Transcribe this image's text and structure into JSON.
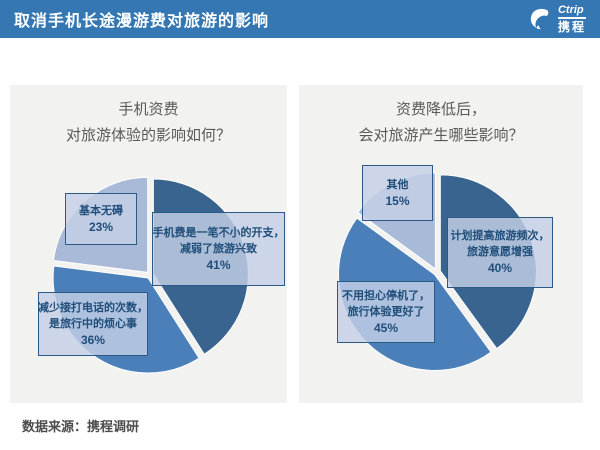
{
  "header": {
    "title": "取消手机长途漫游费对旅游的影响",
    "logo": {
      "brand": "Ctrip",
      "brand_cn": "携程"
    }
  },
  "footer": {
    "source": "数据来源：携程调研"
  },
  "colors": {
    "header_bg": "#3577B3",
    "panel_bg": "#F2F2F1",
    "slice_dark": "#38648F",
    "slice_medium": "#4B7FB9",
    "slice_light": "#A9B9D8",
    "label_text": "#1F4E79",
    "label_border": "#2C5985"
  },
  "chart_data": [
    {
      "type": "pie",
      "title": "手机资费对旅游体验的影响如何？",
      "title_lines": [
        "手机资费",
        "对旅游体验的影响如何？"
      ],
      "start_angle_deg": 0,
      "direction": "clockwise",
      "legend": false,
      "slices": [
        {
          "name": "手机费是一笔不小的开支，减弱了旅游兴致",
          "value": 41,
          "pct_label": "41%",
          "label_lines": [
            "手机费是一笔不小的开支，",
            "减弱了旅游兴致"
          ],
          "color": "#38648F"
        },
        {
          "name": "减少接打电话的次数，是旅行中的烦心事",
          "value": 36,
          "pct_label": "36%",
          "label_lines": [
            "减少接打电话的次数，",
            "是旅行中的烦心事"
          ],
          "color": "#4B7FB9"
        },
        {
          "name": "基本无碍",
          "value": 23,
          "pct_label": "23%",
          "label_lines": [
            "基本无碍"
          ],
          "color": "#A9B9D8"
        }
      ]
    },
    {
      "type": "pie",
      "title": "资费降低后，会对旅游产生哪些影响？",
      "title_lines": [
        "资费降低后，",
        "会对旅游产生哪些影响？"
      ],
      "start_angle_deg": 0,
      "direction": "clockwise",
      "legend": false,
      "slices": [
        {
          "name": "计划提高旅游频次，旅游意愿增强",
          "value": 40,
          "pct_label": "40%",
          "label_lines": [
            "计划提高旅游频次，",
            "旅游意愿增强"
          ],
          "color": "#38648F"
        },
        {
          "name": "不用担心停机了，旅行体验更好了",
          "value": 45,
          "pct_label": "45%",
          "label_lines": [
            "不用担心停机了，",
            "旅行体验更好了"
          ],
          "color": "#4B7FB9"
        },
        {
          "name": "其他",
          "value": 15,
          "pct_label": "15%",
          "label_lines": [
            "其他"
          ],
          "color": "#A9B9D8"
        }
      ]
    }
  ]
}
